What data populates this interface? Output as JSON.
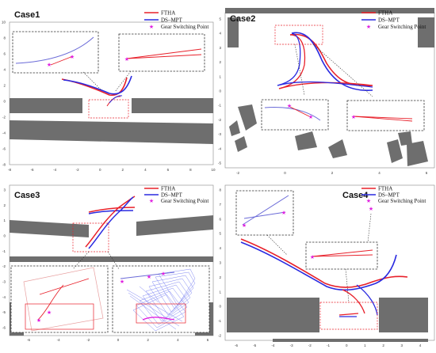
{
  "colors": {
    "ftha": "#e8202a",
    "dsmpt": "#2a2ae0",
    "gear": "#e020e0",
    "obstacle": "#6e6e6e",
    "inset_box": "#333333",
    "highlight_box": "#e8202a",
    "trail": "#6a72f0"
  },
  "legend": {
    "ftha": "FTHA",
    "dsmpt": "DS–MPT",
    "gear": "Gear Switching Point",
    "gear_marker": "★"
  },
  "chart_data": [
    {
      "type": "line",
      "title": "Case1",
      "xticks": [
        "-8",
        "-6",
        "-4",
        "-2",
        "0",
        "2",
        "4",
        "6",
        "8",
        "10"
      ],
      "yticks": [
        "10",
        "8",
        "6",
        "4",
        "2",
        "0",
        "-2",
        "-4",
        "-6",
        "-8"
      ],
      "xlim": [
        -9,
        11
      ],
      "ylim": [
        -9,
        10.5
      ],
      "series": [
        {
          "name": "FTHA",
          "x": [
            -4,
            -2,
            0,
            1,
            2,
            2.6,
            3
          ],
          "y": [
            2.8,
            2.1,
            1.3,
            0.9,
            1.2,
            2.0,
            3.0
          ]
        },
        {
          "name": "DS–MPT",
          "x": [
            -4,
            -2,
            0,
            1,
            2,
            2.8,
            3.3
          ],
          "y": [
            2.6,
            2.0,
            1.2,
            1.0,
            1.3,
            2.1,
            3.0
          ]
        }
      ],
      "gear_switching_point": {
        "x": 1.3,
        "y": 0.4
      }
    },
    {
      "type": "line",
      "title": "Case2",
      "xticks": [
        "-2",
        "0",
        "2",
        "4",
        "6"
      ],
      "yticks": [
        "5",
        "4",
        "3",
        "2",
        "1",
        "0",
        "-1",
        "-2",
        "-3",
        "-4",
        "-5"
      ],
      "xlim": [
        -4,
        7.5
      ],
      "ylim": [
        -5.5,
        5.5
      ],
      "series": [
        {
          "name": "FTHA",
          "x": [
            -1.5,
            0.5,
            2.5,
            4.5,
            5.5
          ],
          "y": [
            -2.7,
            -2.3,
            -2.5,
            -2.8,
            -2.8
          ]
        },
        {
          "name": "DS–MPT",
          "x": [
            -1.2,
            0.5,
            2.5,
            4.5,
            5.8
          ],
          "y": [
            -2.9,
            -2.6,
            -2.4,
            -2.6,
            -2.9
          ]
        }
      ],
      "gear_switching_point": {
        "x": 0.2,
        "y": 3.1
      }
    },
    {
      "type": "line",
      "title": "Case3",
      "xticks": [
        "-6",
        "-4",
        "-2",
        "0",
        "2",
        "4",
        "6"
      ],
      "yticks": [
        "3",
        "2",
        "1",
        "0",
        "-1",
        "-2",
        "-3",
        "-4",
        "-5",
        "-6"
      ],
      "xlim": [
        -7,
        8
      ],
      "ylim": [
        -6.5,
        3.5
      ],
      "series": [
        {
          "name": "FTHA",
          "x": [
            -1,
            0.5,
            2,
            3,
            4
          ],
          "y": [
            -2,
            -0.5,
            1.2,
            2.3,
            2.8
          ]
        },
        {
          "name": "DS–MPT",
          "x": [
            -1.2,
            0.3,
            1.8,
            2.8,
            3.8
          ],
          "y": [
            -2.2,
            -0.7,
            1.0,
            2.1,
            2.7
          ]
        }
      ],
      "gear_switching_point": {
        "x": 3.6,
        "y": 2.7
      }
    },
    {
      "type": "line",
      "title": "Case4",
      "xticks": [
        "-6",
        "-5",
        "-4",
        "-3",
        "-2",
        "-1",
        "0",
        "1",
        "2",
        "3",
        "4"
      ],
      "yticks": [
        "8",
        "7",
        "6",
        "5",
        "4",
        "3",
        "2",
        "1",
        "0",
        "-1",
        "-2"
      ],
      "xlim": [
        -6.5,
        4.5
      ],
      "ylim": [
        -2.5,
        8.5
      ],
      "series": [
        {
          "name": "FTHA",
          "x": [
            -5.5,
            -4,
            -2.5,
            -1,
            0,
            1,
            2,
            3.5
          ],
          "y": [
            3.6,
            2.8,
            1.9,
            1.0,
            0.8,
            0.9,
            1.3,
            1.8
          ]
        },
        {
          "name": "DS–MPT",
          "x": [
            -5.5,
            -4,
            -2.5,
            -1,
            0,
            1,
            2,
            3
          ],
          "y": [
            3.4,
            2.6,
            1.6,
            0.9,
            0.7,
            0.7,
            1.0,
            2.4
          ]
        }
      ],
      "gear_switching_point": {
        "x": 3.3,
        "y": 4.6
      }
    }
  ]
}
